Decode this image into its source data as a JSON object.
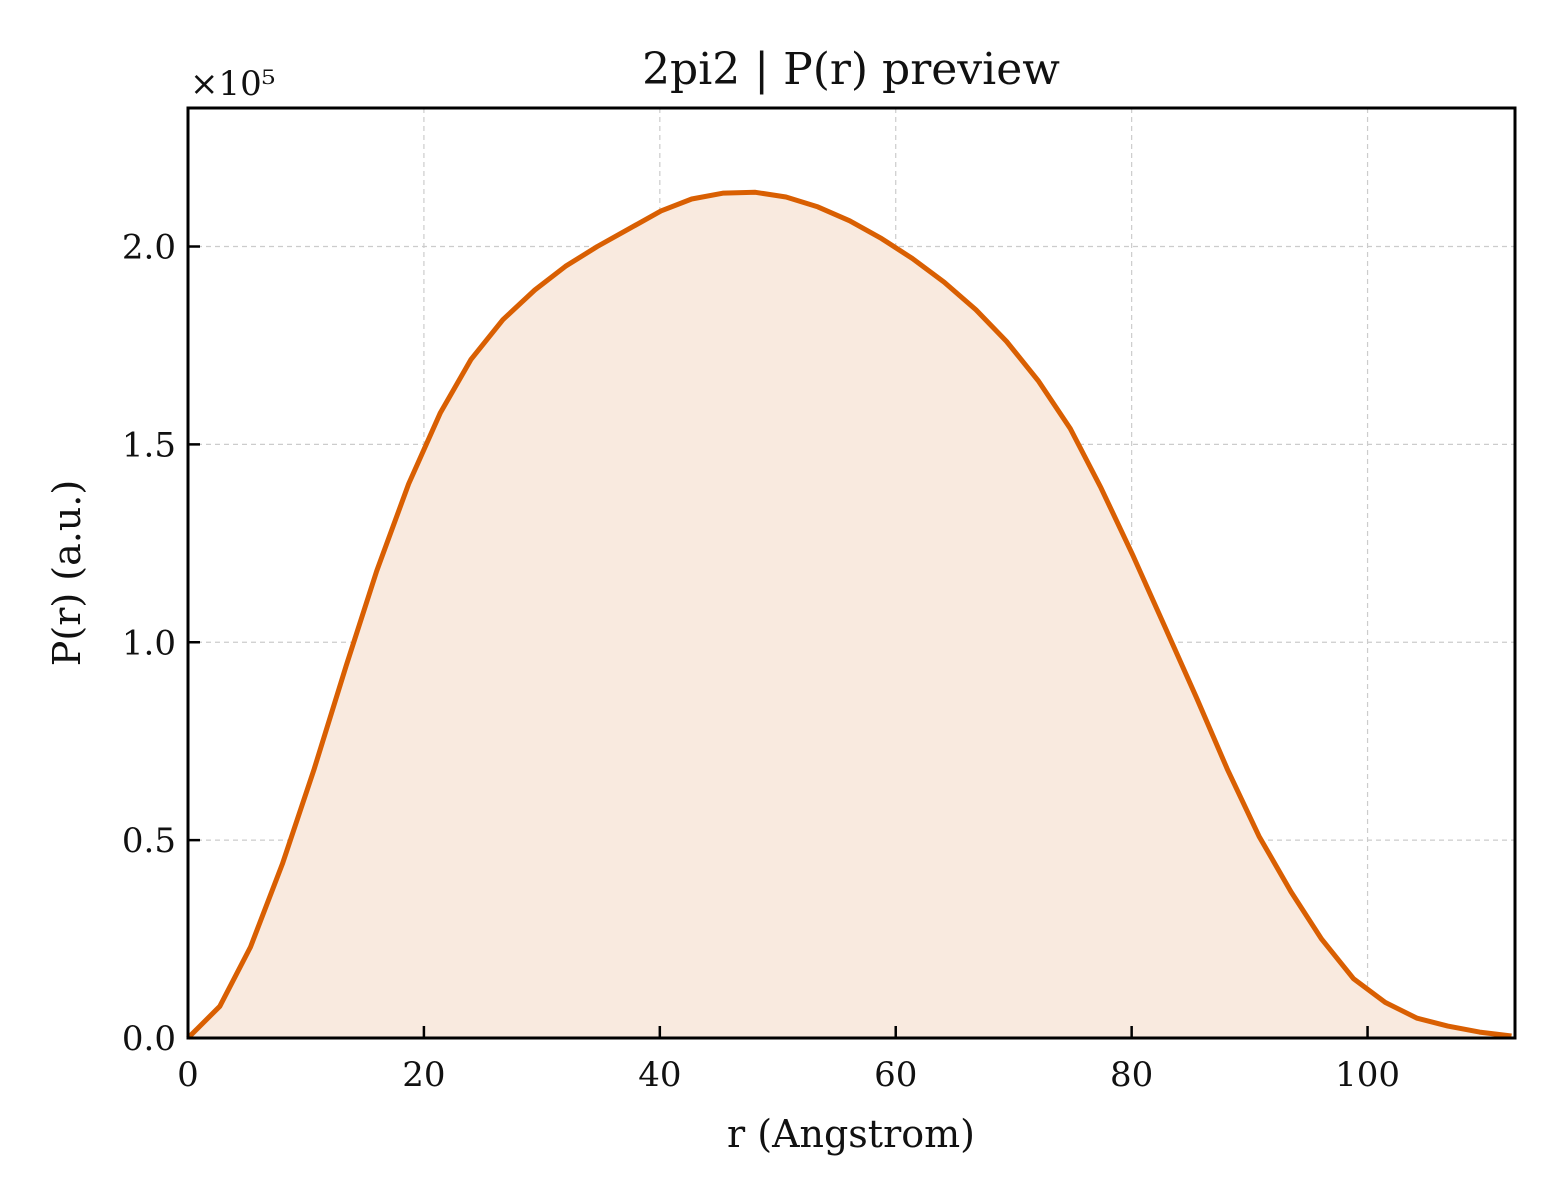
{
  "chart_data": {
    "type": "area",
    "title": "2pi2 | P(r) preview",
    "xlabel": "r (Angstrom)",
    "ylabel": "P(r) (a.u.)",
    "y_multiplier_label": "×10⁵",
    "xlim": [
      0,
      112.5
    ],
    "ylim": [
      0,
      2.35
    ],
    "x_ticks": [
      0,
      20,
      40,
      60,
      80,
      100
    ],
    "x_tick_labels": [
      "0",
      "20",
      "40",
      "60",
      "80",
      "100"
    ],
    "y_ticks": [
      0,
      0.5,
      1.0,
      1.5,
      2.0
    ],
    "y_tick_labels": [
      "0.0",
      "0.5",
      "1.0",
      "1.5",
      "2.0"
    ],
    "grid": true,
    "line_color": "#d95f02",
    "fill_color": "#f9eadf",
    "series": [
      {
        "x": [
          0,
          2.7,
          5.3,
          8.0,
          10.7,
          13.4,
          16.0,
          18.7,
          21.4,
          24.0,
          26.7,
          29.4,
          32.0,
          34.7,
          37.4,
          40.1,
          42.7,
          45.4,
          48.1,
          50.7,
          53.4,
          56.1,
          58.8,
          61.4,
          64.1,
          66.8,
          69.4,
          72.1,
          74.8,
          77.4,
          80.1,
          82.8,
          85.5,
          88.1,
          90.8,
          93.5,
          96.1,
          98.8,
          101.5,
          104.2,
          106.8,
          109.5,
          112.2
        ],
        "y": [
          0,
          0.08,
          0.23,
          0.44,
          0.68,
          0.94,
          1.18,
          1.4,
          1.58,
          1.715,
          1.815,
          1.89,
          1.95,
          2.0,
          2.045,
          2.09,
          2.12,
          2.135,
          2.137,
          2.125,
          2.1,
          2.065,
          2.02,
          1.97,
          1.91,
          1.84,
          1.76,
          1.66,
          1.54,
          1.39,
          1.22,
          1.04,
          0.86,
          0.68,
          0.51,
          0.37,
          0.25,
          0.15,
          0.09,
          0.05,
          0.03,
          0.015,
          0.005
        ]
      }
    ]
  }
}
